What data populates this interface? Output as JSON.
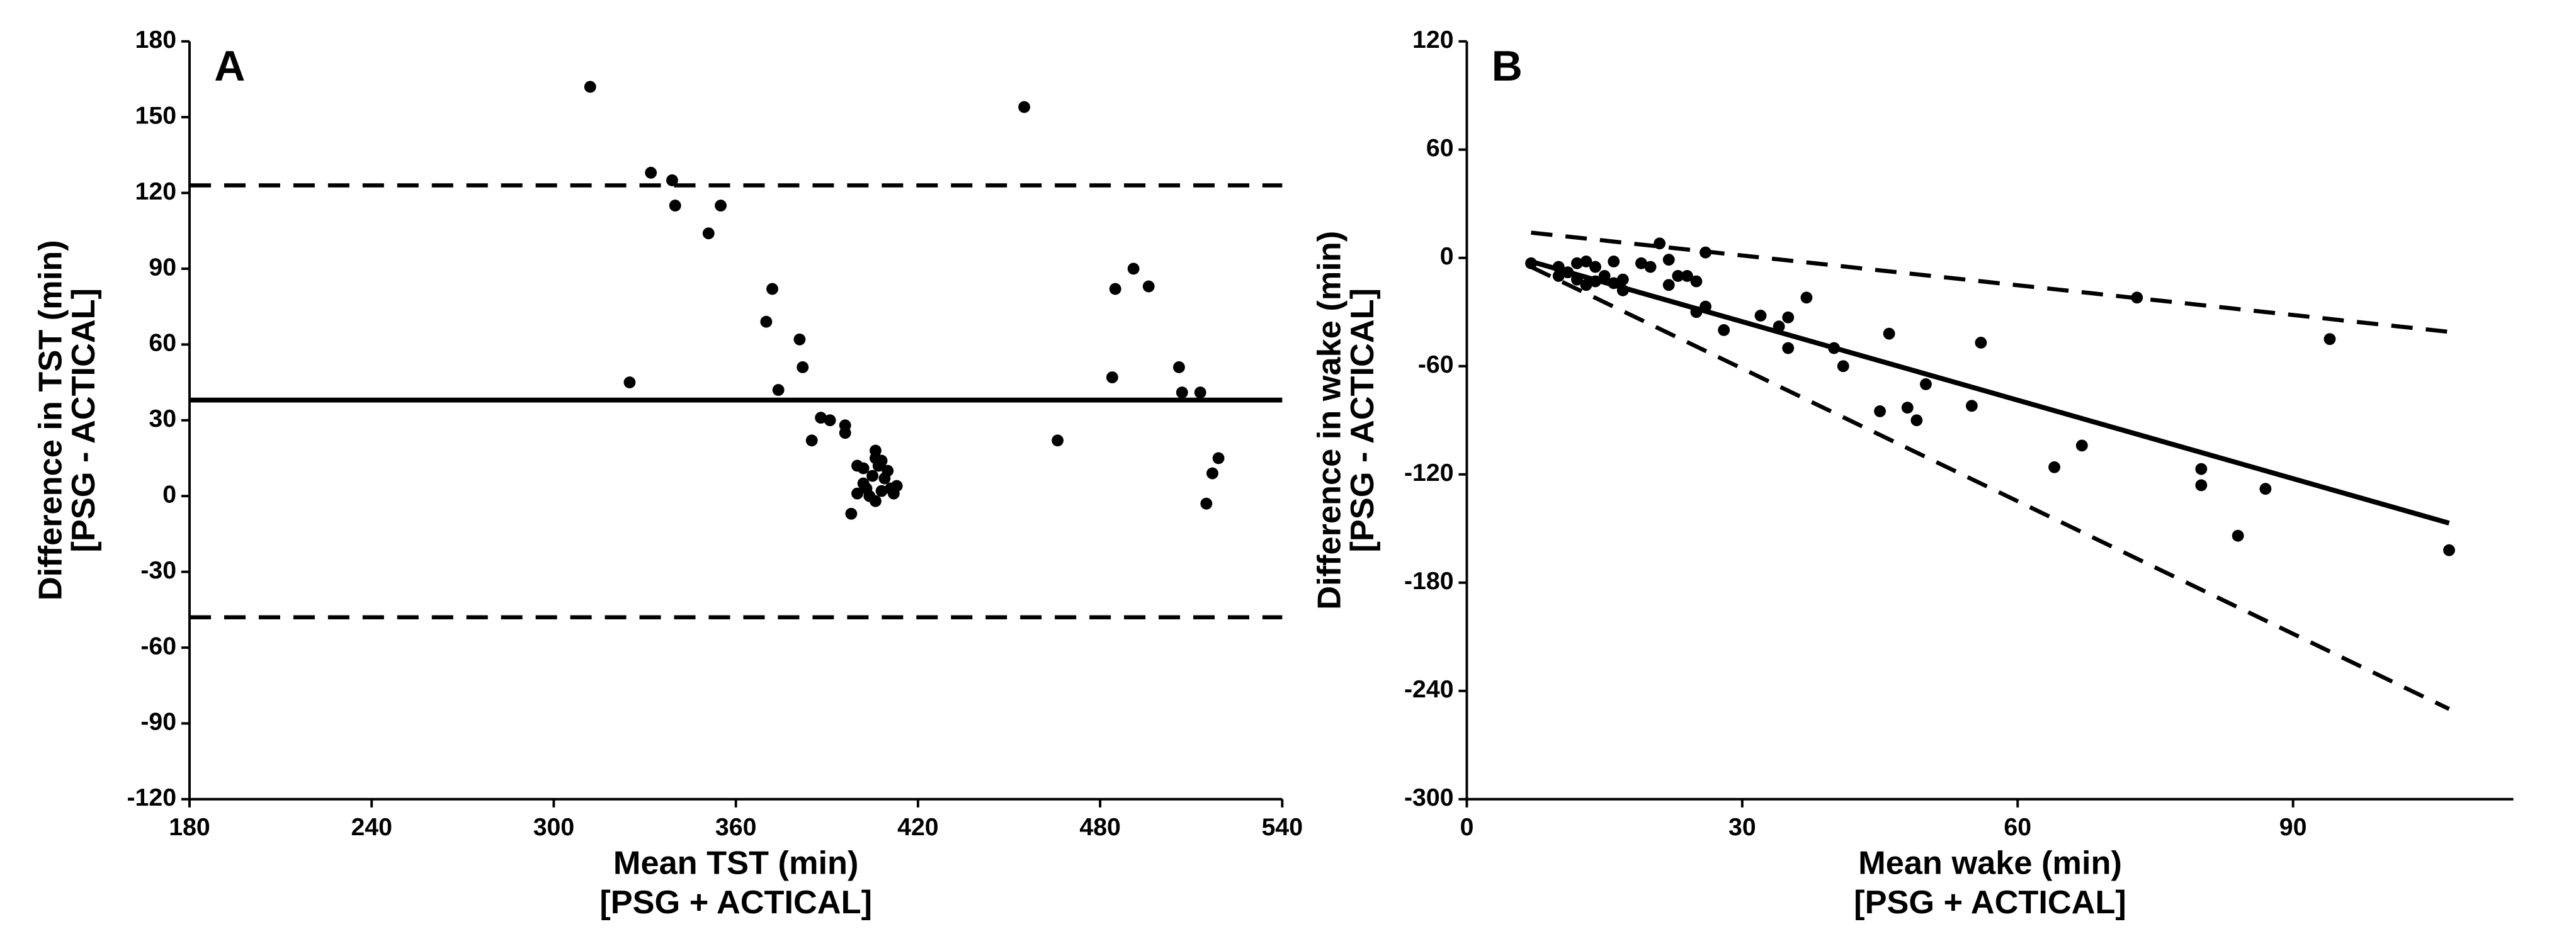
{
  "chart_data": [
    {
      "type": "scatter",
      "panel_label": "A",
      "xlabel": [
        "Mean TST (min)",
        "[PSG + ACTICAL]"
      ],
      "ylabel": [
        "Difference in TST (min)",
        "[PSG - ACTICAL]"
      ],
      "xlim": [
        180,
        540
      ],
      "xticks": [
        180,
        240,
        300,
        360,
        420,
        480,
        540
      ],
      "ylim": [
        -120,
        180
      ],
      "yticks": [
        -120,
        -90,
        -60,
        -30,
        0,
        30,
        60,
        90,
        120,
        150,
        180
      ],
      "color": "#000000",
      "x": [
        312,
        325,
        332,
        339,
        340,
        355,
        351,
        372,
        370,
        374,
        381,
        382,
        385,
        388,
        391,
        396,
        396,
        400,
        402,
        400,
        398,
        403,
        405,
        406,
        406,
        408,
        410,
        404,
        406,
        408,
        409,
        411,
        413,
        402,
        407,
        412,
        455,
        466,
        484,
        485,
        491,
        496,
        506,
        507,
        513,
        515,
        517,
        519
      ],
      "values": [
        162,
        45,
        128,
        125,
        115,
        115,
        104,
        82,
        69,
        42,
        62,
        51,
        22,
        31,
        30,
        28,
        25,
        12,
        11,
        1,
        -7,
        3,
        8,
        15,
        18,
        14,
        10,
        0,
        -2,
        2,
        7,
        3,
        4,
        5,
        12,
        1,
        154,
        22,
        47,
        82,
        90,
        83,
        51,
        41,
        41,
        -3,
        9,
        15
      ],
      "lines": [
        {
          "style": "dashed",
          "x": [
            180,
            540
          ],
          "y": [
            123,
            123
          ]
        },
        {
          "style": "solid",
          "x": [
            180,
            540
          ],
          "y": [
            38,
            38
          ]
        },
        {
          "style": "dashed",
          "x": [
            180,
            540
          ],
          "y": [
            -48,
            -48
          ]
        }
      ]
    },
    {
      "type": "scatter",
      "panel_label": "B",
      "xlabel": [
        "Mean wake (min)",
        "[PSG + ACTICAL]"
      ],
      "ylabel": [
        "Difference in wake (min)",
        "[PSG - ACTICAL]"
      ],
      "xlim": [
        0,
        114
      ],
      "xticks": [
        0,
        30,
        60,
        90
      ],
      "ylim": [
        -300,
        120
      ],
      "yticks": [
        -300,
        -240,
        -180,
        -120,
        -60,
        0,
        60,
        120
      ],
      "color": "#000000",
      "x": [
        7,
        10,
        10,
        11,
        12,
        12,
        13,
        13,
        14,
        14,
        15,
        16,
        16,
        17,
        17,
        19,
        20,
        21,
        22,
        22,
        23,
        24,
        25,
        25,
        26,
        26,
        28,
        32,
        34,
        35,
        35,
        37,
        40,
        41,
        45,
        46,
        48,
        49,
        50,
        55,
        56,
        64,
        67,
        73,
        80,
        80,
        84,
        87,
        94,
        107
      ],
      "values": [
        -3,
        -5,
        -10,
        -8,
        -3,
        -12,
        -2,
        -15,
        -5,
        -13,
        -10,
        -2,
        -14,
        -12,
        -18,
        -3,
        -5,
        8,
        -1,
        -15,
        -10,
        -10,
        -13,
        -30,
        -27,
        3,
        -40,
        -32,
        -38,
        -50,
        -33,
        -22,
        -50,
        -60,
        -85,
        -42,
        -83,
        -90,
        -70,
        -82,
        -47,
        -116,
        -104,
        -22,
        -117,
        -126,
        -154,
        -128,
        -45,
        -162
      ],
      "lines": [
        {
          "style": "dashed",
          "x": [
            7,
            107
          ],
          "y": [
            14,
            -41
          ]
        },
        {
          "style": "solid",
          "x": [
            7,
            107
          ],
          "y": [
            -2,
            -147
          ]
        },
        {
          "style": "dashed",
          "x": [
            7,
            107
          ],
          "y": [
            -5,
            -250
          ]
        }
      ]
    }
  ]
}
